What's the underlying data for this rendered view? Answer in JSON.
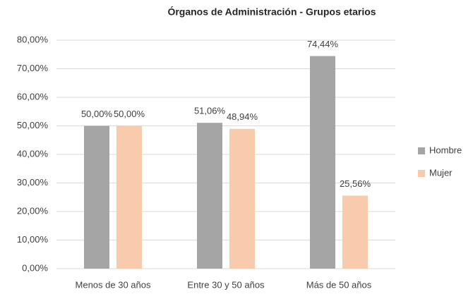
{
  "chart_data": {
    "type": "bar",
    "title": "Órganos de Administración - Grupos etarios",
    "categories": [
      "Menos de 30 años",
      "Entre 30 y 50 años",
      "Más de 50 años"
    ],
    "series": [
      {
        "name": "Hombre",
        "color": "#a5a5a5",
        "values": [
          50,
          51.06,
          74.44
        ],
        "value_labels": [
          "50,00%",
          "51,06%",
          "74,44%"
        ]
      },
      {
        "name": "Mujer",
        "color": "#f8cbad",
        "values": [
          50,
          48.94,
          25.56
        ],
        "value_labels": [
          "50,00%",
          "48,94%",
          "25,56%"
        ]
      }
    ],
    "ylim": [
      0,
      80
    ],
    "yticks": [
      {
        "value": 0,
        "label": "0,00%"
      },
      {
        "value": 10,
        "label": "10,00%"
      },
      {
        "value": 20,
        "label": "20,00%"
      },
      {
        "value": 30,
        "label": "30,00%"
      },
      {
        "value": 40,
        "label": "40,00%"
      },
      {
        "value": 50,
        "label": "50,00%"
      },
      {
        "value": 60,
        "label": "60,00%"
      },
      {
        "value": 70,
        "label": "70,00%"
      },
      {
        "value": 80,
        "label": "80,00%"
      }
    ],
    "grid": true,
    "legend": "right"
  }
}
